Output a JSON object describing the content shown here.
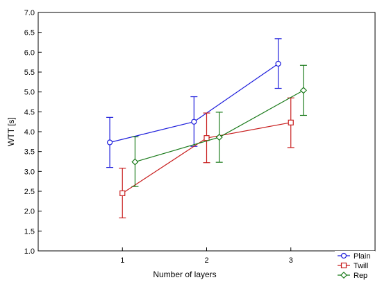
{
  "chart_data": {
    "type": "line",
    "xlabel": "Number of layers",
    "ylabel": "WTT   [s]",
    "x_ticks": [
      "1",
      "2",
      "3"
    ],
    "y_ticks": [
      "1.0",
      "1.5",
      "2.0",
      "2.5",
      "3.0",
      "3.5",
      "4.0",
      "4.5",
      "5.0",
      "5.5",
      "6.0",
      "6.5",
      "7.0"
    ],
    "ylim": [
      1.0,
      7.0
    ],
    "xlim": [
      0,
      4
    ],
    "grid": false,
    "legend_position": "bottom-right",
    "series": [
      {
        "name": "Plain",
        "color": "#1f1fdc",
        "marker": "circle",
        "points": [
          {
            "x": 1,
            "y": 3.73,
            "err_low": 3.1,
            "err_high": 4.36
          },
          {
            "x": 2,
            "y": 4.25,
            "err_low": 3.63,
            "err_high": 4.88
          },
          {
            "x": 3,
            "y": 5.71,
            "err_low": 5.09,
            "err_high": 6.34
          }
        ]
      },
      {
        "name": "Twill",
        "color": "#c81e1e",
        "marker": "square",
        "points": [
          {
            "x": 1,
            "y": 2.45,
            "err_low": 1.83,
            "err_high": 3.08
          },
          {
            "x": 2,
            "y": 3.84,
            "err_low": 3.22,
            "err_high": 4.47
          },
          {
            "x": 3,
            "y": 4.23,
            "err_low": 3.6,
            "err_high": 4.85
          }
        ]
      },
      {
        "name": "Rep",
        "color": "#1a7a1a",
        "marker": "diamond",
        "points": [
          {
            "x": 1,
            "y": 3.24,
            "err_low": 2.62,
            "err_high": 3.87
          },
          {
            "x": 2,
            "y": 3.86,
            "err_low": 3.23,
            "err_high": 4.49
          },
          {
            "x": 3,
            "y": 5.04,
            "err_low": 4.41,
            "err_high": 5.67
          }
        ]
      }
    ]
  }
}
